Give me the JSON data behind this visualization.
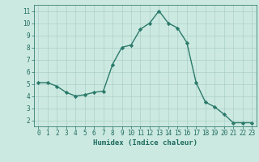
{
  "x": [
    0,
    1,
    2,
    3,
    4,
    5,
    6,
    7,
    8,
    9,
    10,
    11,
    12,
    13,
    14,
    15,
    16,
    17,
    18,
    19,
    20,
    21,
    22,
    23
  ],
  "y": [
    5.1,
    5.1,
    4.8,
    4.3,
    4.0,
    4.1,
    4.3,
    4.4,
    6.6,
    8.0,
    8.2,
    9.5,
    10.0,
    11.0,
    10.0,
    9.6,
    8.4,
    5.1,
    3.5,
    3.1,
    2.5,
    1.8,
    1.8,
    1.8
  ],
  "line_color": "#2a7a6a",
  "marker": "D",
  "marker_size": 2.2,
  "bg_color": "#cce9e1",
  "grid_color": "#aad0c8",
  "xlabel": "Humidex (Indice chaleur)",
  "xlim": [
    -0.5,
    23.5
  ],
  "ylim": [
    1.5,
    11.5
  ],
  "yticks": [
    2,
    3,
    4,
    5,
    6,
    7,
    8,
    9,
    10,
    11
  ],
  "tick_color": "#1e6b5e",
  "label_fontsize": 6.5,
  "tick_fontsize": 5.5,
  "line_width": 1.0
}
